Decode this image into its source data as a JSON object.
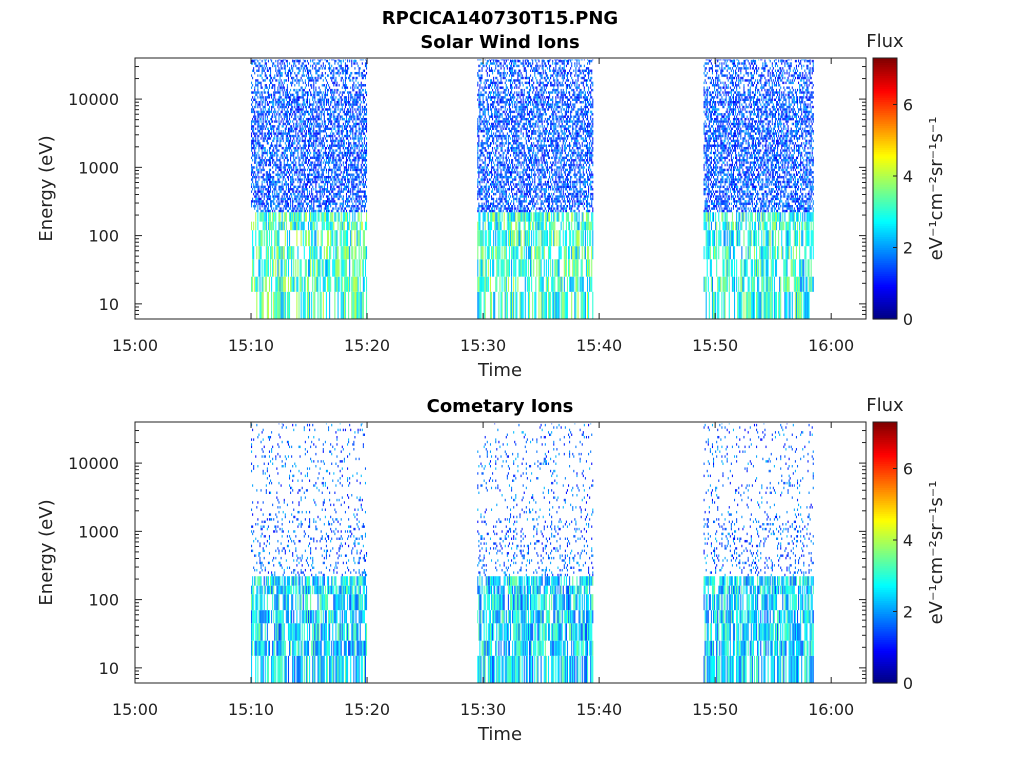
{
  "figure": {
    "title": "RPCICA140730T15.PNG"
  },
  "chart_data": [
    {
      "type": "heatmap",
      "title": "Solar Wind Ions",
      "xlabel": "Time",
      "ylabel": "Energy (eV)",
      "x_ticks": [
        "15:00",
        "15:10",
        "15:20",
        "15:30",
        "15:40",
        "15:50",
        "16:00"
      ],
      "x_range": [
        "15:00",
        "16:03"
      ],
      "y_scale": "log",
      "y_ticks": [
        "10",
        "100",
        "1000",
        "10000"
      ],
      "y_range": [
        6,
        40000
      ],
      "colorbar": {
        "title": "Flux",
        "label": "eV⁻¹cm⁻²sr⁻¹s⁻¹",
        "ticks": [
          "0",
          "2",
          "4",
          "6"
        ],
        "range": [
          0,
          7.3
        ],
        "colormap": "jet"
      },
      "data_blocks": [
        {
          "start": "15:10",
          "end": "15:20",
          "energy_min": 6,
          "energy_max": 38000,
          "typical_flux_high_energy": 1.5,
          "typical_flux_low_energy": 3.2
        },
        {
          "start": "15:29.5",
          "end": "15:39.5",
          "energy_min": 6,
          "energy_max": 38000,
          "typical_flux_high_energy": 1.5,
          "typical_flux_low_energy": 3.2
        },
        {
          "start": "15:49",
          "end": "15:58.5",
          "energy_min": 6,
          "energy_max": 38000,
          "typical_flux_high_energy": 1.5,
          "typical_flux_low_energy": 3.0
        }
      ]
    },
    {
      "type": "heatmap",
      "title": "Cometary Ions",
      "xlabel": "Time",
      "ylabel": "Energy (eV)",
      "x_ticks": [
        "15:00",
        "15:10",
        "15:20",
        "15:30",
        "15:40",
        "15:50",
        "16:00"
      ],
      "x_range": [
        "15:00",
        "16:03"
      ],
      "y_scale": "log",
      "y_ticks": [
        "10",
        "100",
        "1000",
        "10000"
      ],
      "y_range": [
        6,
        40000
      ],
      "colorbar": {
        "title": "Flux",
        "label": "eV⁻¹cm⁻²sr⁻¹s⁻¹",
        "ticks": [
          "0",
          "2",
          "4",
          "6"
        ],
        "range": [
          0,
          7.3
        ],
        "colormap": "jet"
      },
      "data_blocks": [
        {
          "start": "15:10",
          "end": "15:20",
          "energy_min": 6,
          "energy_max": 38000,
          "typical_flux_high_energy": 1.6,
          "typical_flux_low_energy": 2.6
        },
        {
          "start": "15:29.5",
          "end": "15:39.5",
          "energy_min": 6,
          "energy_max": 38000,
          "typical_flux_high_energy": 1.6,
          "typical_flux_low_energy": 2.6
        },
        {
          "start": "15:49",
          "end": "15:58.5",
          "energy_min": 6,
          "energy_max": 38000,
          "typical_flux_high_energy": 1.6,
          "typical_flux_low_energy": 2.6
        }
      ]
    }
  ]
}
